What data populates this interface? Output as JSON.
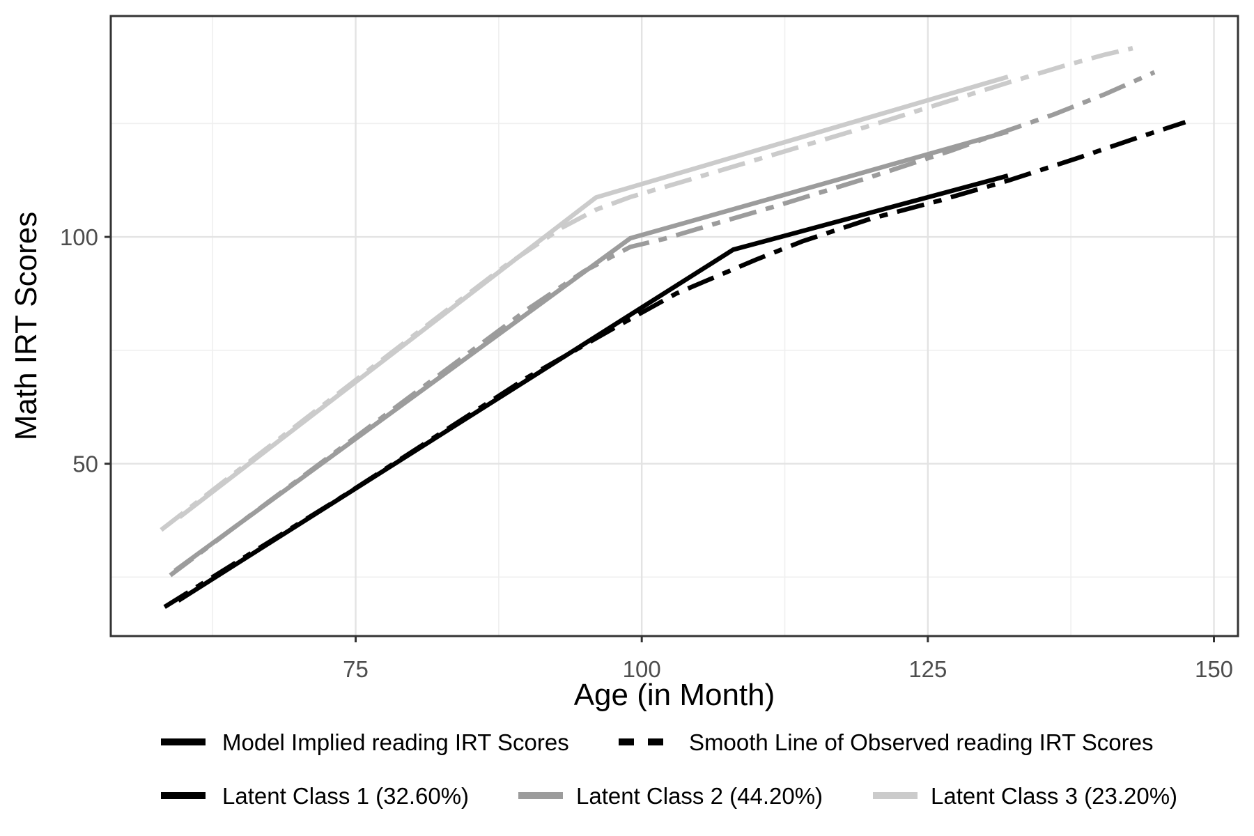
{
  "chart_data": {
    "type": "line",
    "title": "",
    "xlabel": "Age (in Month)",
    "ylabel": "Math IRT Scores",
    "x_ticks": [
      75,
      100,
      125,
      150
    ],
    "y_ticks": [
      50,
      100
    ],
    "x_minor_ticks": [
      62.5,
      87.5,
      112.5,
      137.5
    ],
    "y_minor_ticks": [
      25,
      75,
      125
    ],
    "xlim": [
      53.6,
      152.1
    ],
    "ylim": [
      12.0,
      148.7
    ],
    "grid": "on",
    "legend_position": "bottom",
    "colors": {
      "class1": "#000000",
      "class2": "#9c9c9c",
      "class3": "#cbcbcb",
      "grid_major": "#e3e3e3",
      "grid_minor": "#efefef",
      "border": "#333333",
      "tick_text": "#4d4d4d"
    },
    "series": [
      {
        "id": "class3-model",
        "class": "Latent Class 3",
        "role": "model-implied",
        "color": "#cbcbcb",
        "dash": "solid",
        "points": [
          [
            59.6,
            38.2
          ],
          [
            96,
            108.7
          ],
          [
            132,
            135.3
          ]
        ]
      },
      {
        "id": "class3-observed",
        "class": "Latent Class 3",
        "role": "smooth-observed",
        "color": "#cbcbcb",
        "dash": "dashdot",
        "points": [
          [
            58,
            35.4
          ],
          [
            66,
            51
          ],
          [
            74,
            66.5
          ],
          [
            82,
            82
          ],
          [
            88,
            93.5
          ],
          [
            93,
            102
          ],
          [
            96,
            106
          ],
          [
            99,
            108.8
          ],
          [
            104,
            112.5
          ],
          [
            110,
            117
          ],
          [
            118,
            123
          ],
          [
            126,
            129.3
          ],
          [
            132,
            134
          ],
          [
            137,
            137.8
          ],
          [
            140.5,
            140.2
          ],
          [
            142.9,
            141.6
          ]
        ]
      },
      {
        "id": "class2-model",
        "class": "Latent Class 2",
        "role": "model-implied",
        "color": "#9c9c9c",
        "dash": "solid",
        "points": [
          [
            59.2,
            26.4
          ],
          [
            99,
            99.7
          ],
          [
            132,
            123.2
          ]
        ]
      },
      {
        "id": "class2-observed",
        "class": "Latent Class 2",
        "role": "smooth-observed",
        "color": "#9c9c9c",
        "dash": "dashdot",
        "points": [
          [
            58.8,
            25.4
          ],
          [
            66,
            39
          ],
          [
            74,
            54
          ],
          [
            82,
            69
          ],
          [
            90,
            84
          ],
          [
            95,
            92.5
          ],
          [
            99,
            97.8
          ],
          [
            102,
            99.6
          ],
          [
            106,
            102.6
          ],
          [
            112,
            107
          ],
          [
            120,
            113.2
          ],
          [
            127,
            119
          ],
          [
            132,
            123.5
          ],
          [
            136,
            127
          ],
          [
            140.5,
            131.5
          ],
          [
            144.8,
            136.3
          ]
        ]
      },
      {
        "id": "class1-model",
        "class": "Latent Class 1",
        "role": "model-implied",
        "color": "#000000",
        "dash": "solid",
        "points": [
          [
            59.5,
            19.8
          ],
          [
            108,
            97.2
          ],
          [
            132,
            113.5
          ]
        ]
      },
      {
        "id": "class1-observed",
        "class": "Latent Class 1",
        "role": "smooth-observed",
        "color": "#000000",
        "dash": "dashdot",
        "points": [
          [
            58.3,
            18.4
          ],
          [
            66,
            30.5
          ],
          [
            74,
            43
          ],
          [
            82,
            56
          ],
          [
            90,
            69
          ],
          [
            98,
            80.5
          ],
          [
            103,
            87.5
          ],
          [
            107,
            91.8
          ],
          [
            110,
            95
          ],
          [
            114,
            99
          ],
          [
            120,
            104
          ],
          [
            126,
            108
          ],
          [
            132,
            112.4
          ],
          [
            138,
            117.3
          ],
          [
            143,
            121.6
          ],
          [
            147.5,
            125.3
          ]
        ]
      }
    ],
    "legend": {
      "row1": [
        {
          "label": "Model Implied reading IRT Scores",
          "swatch": "solid",
          "color": "#000000"
        },
        {
          "label": "Smooth Line of Observed reading IRT Scores",
          "swatch": "dashdot",
          "color": "#000000"
        }
      ],
      "row2": [
        {
          "label": "Latent Class 1 (32.60%)",
          "swatch": "solid",
          "color": "#000000"
        },
        {
          "label": "Latent Class 2 (44.20%)",
          "swatch": "solid",
          "color": "#9c9c9c"
        },
        {
          "label": "Latent Class 3 (23.20%)",
          "swatch": "solid",
          "color": "#cbcbcb"
        }
      ]
    }
  }
}
